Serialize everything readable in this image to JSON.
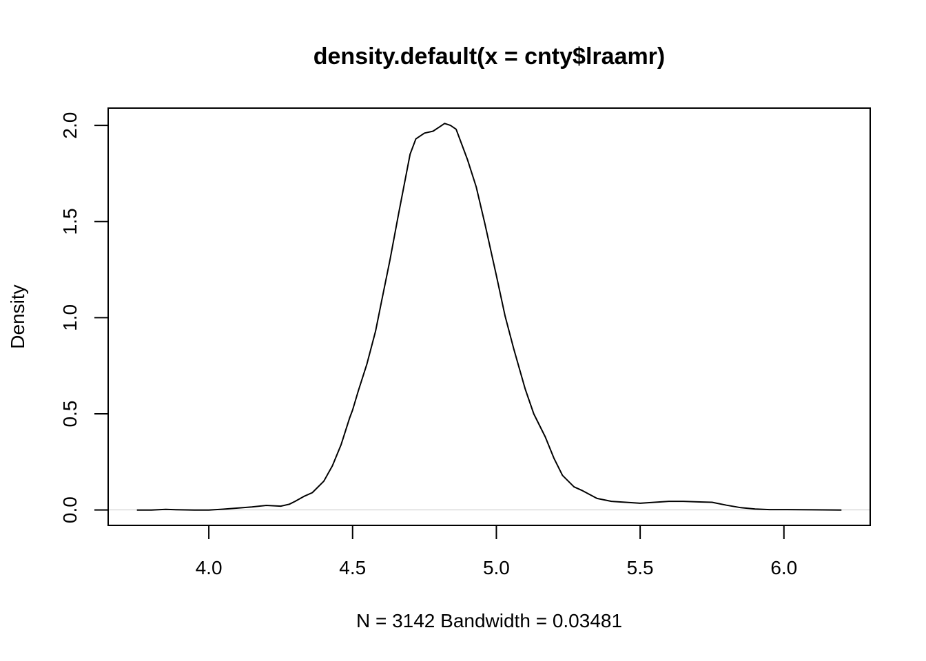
{
  "chart_data": {
    "type": "line",
    "title": "density.default(x = cnty$lraamr)",
    "xlabel": "N = 3142   Bandwidth = 0.03481",
    "ylabel": "Density",
    "xlim": [
      3.65,
      6.3
    ],
    "ylim": [
      -0.08,
      2.09
    ],
    "x_ticks": [
      4.0,
      4.5,
      5.0,
      5.5,
      6.0
    ],
    "x_tick_labels": [
      "4.0",
      "4.5",
      "5.0",
      "5.5",
      "6.0"
    ],
    "y_ticks": [
      0.0,
      0.5,
      1.0,
      1.5,
      2.0
    ],
    "y_tick_labels": [
      "0.0",
      "0.5",
      "1.0",
      "1.5",
      "2.0"
    ],
    "baseline": 0.0,
    "baseline_color": "#c8c8c8",
    "line_color": "#000000",
    "grid": false,
    "legend": "none",
    "series": [
      {
        "x": [
          3.75,
          3.8,
          3.85,
          3.9,
          3.95,
          4.0,
          4.05,
          4.1,
          4.15,
          4.2,
          4.25,
          4.28,
          4.3,
          4.33,
          4.36,
          4.4,
          4.43,
          4.46,
          4.49,
          4.5,
          4.52,
          4.55,
          4.58,
          4.6,
          4.63,
          4.66,
          4.7,
          4.72,
          4.75,
          4.78,
          4.8,
          4.82,
          4.84,
          4.86,
          4.88,
          4.9,
          4.93,
          4.96,
          5.0,
          5.03,
          5.06,
          5.1,
          5.13,
          5.17,
          5.2,
          5.23,
          5.27,
          5.3,
          5.35,
          5.4,
          5.45,
          5.5,
          5.55,
          5.6,
          5.65,
          5.7,
          5.75,
          5.8,
          5.85,
          5.9,
          5.95,
          6.0,
          6.1,
          6.2
        ],
        "y": [
          0.0,
          0.0,
          0.003,
          0.001,
          0.0,
          0.0,
          0.004,
          0.01,
          0.016,
          0.024,
          0.02,
          0.03,
          0.045,
          0.07,
          0.09,
          0.15,
          0.23,
          0.34,
          0.48,
          0.52,
          0.62,
          0.76,
          0.93,
          1.08,
          1.3,
          1.54,
          1.85,
          1.93,
          1.96,
          1.97,
          1.99,
          2.01,
          2.0,
          1.98,
          1.9,
          1.82,
          1.68,
          1.49,
          1.22,
          1.01,
          0.84,
          0.63,
          0.5,
          0.38,
          0.27,
          0.18,
          0.12,
          0.1,
          0.06,
          0.045,
          0.04,
          0.035,
          0.04,
          0.045,
          0.045,
          0.042,
          0.04,
          0.025,
          0.012,
          0.005,
          0.002,
          0.002,
          0.001,
          0.0
        ]
      }
    ]
  }
}
